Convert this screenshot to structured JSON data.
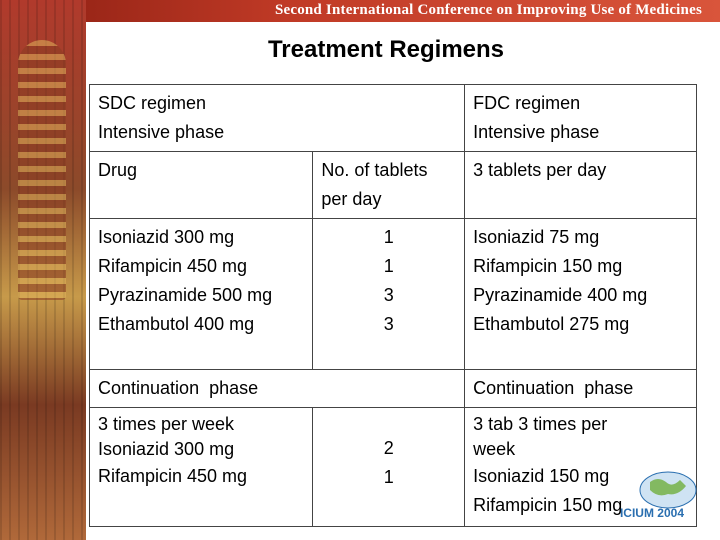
{
  "banner": {
    "text": "Second International Conference on Improving Use of Medicines"
  },
  "title": "Treatment Regimens",
  "table": {
    "header": {
      "sdc_regimen": "SDC regimen",
      "sdc_phase": "Intensive phase",
      "fdc_regimen": "FDC regimen",
      "fdc_phase": "Intensive phase"
    },
    "subheader": {
      "drug": "Drug",
      "tablets_label_1": "No. of tablets",
      "tablets_label_2": "per day",
      "fdc_tablets": "3 tablets per day"
    },
    "intensive_rows": [
      {
        "sdc_drug": "Isoniazid 300 mg",
        "tablets": "1",
        "fdc_drug": "Isoniazid 75 mg"
      },
      {
        "sdc_drug": "Rifampicin 450 mg",
        "tablets": "1",
        "fdc_drug": "Rifampicin 150 mg"
      },
      {
        "sdc_drug": "Pyrazinamide 500 mg",
        "tablets": "3",
        "fdc_drug": "Pyrazinamide 400 mg"
      },
      {
        "sdc_drug": "Ethambutol 400 mg",
        "tablets": "3",
        "fdc_drug": "Ethambutol 275 mg"
      }
    ],
    "continuation": {
      "sdc_label": "Continuation  phase",
      "fdc_label": "Continuation  phase",
      "sdc_lines": [
        "3 times per week",
        "Isoniazid 300 mg",
        "Rifampicin 450 mg"
      ],
      "tablets": [
        "2",
        "1"
      ],
      "fdc_lines": [
        "3 tab 3 times per",
        "week",
        "Isoniazid 150 mg",
        "Rifampicin 150 mg"
      ]
    }
  },
  "logo": {
    "text": "ICIUM 2004"
  }
}
